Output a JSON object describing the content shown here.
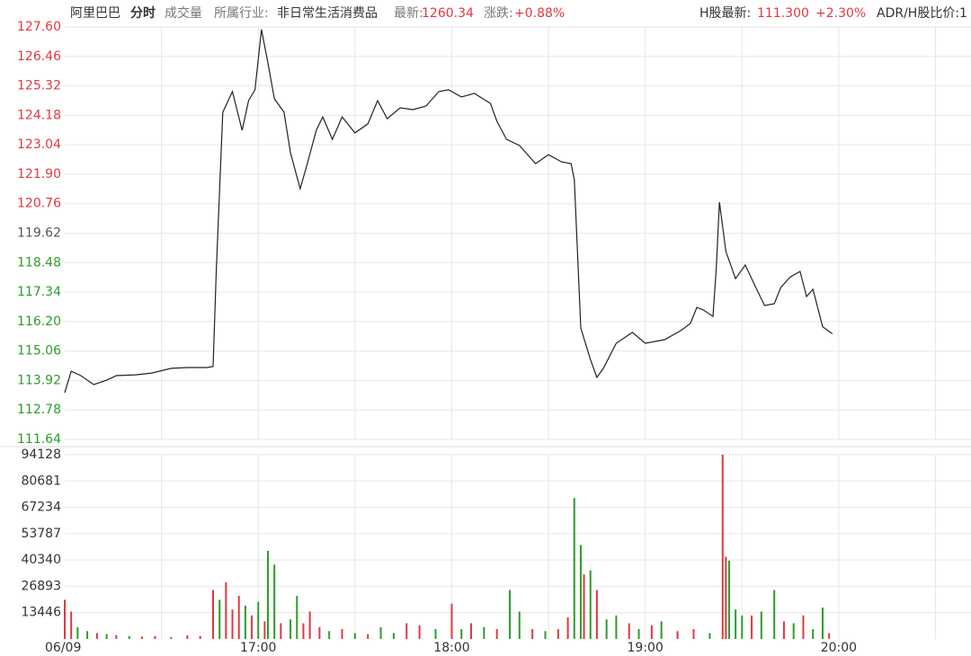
{
  "header": {
    "name": "阿里巴巴",
    "tab": "分时",
    "volume_tab": "成交量",
    "industry_label": "所属行业:",
    "industry": "非日常生活消费品",
    "latest_label": "最新:",
    "latest": "1260.34",
    "change_label": "涨跌:",
    "change": "+0.88%",
    "h_label": "H股最新:",
    "h_price": "111.300",
    "h_change": "+2.30%",
    "adr_label": "ADR/H股比价:1"
  },
  "chart_data": [
    {
      "type": "line",
      "color": "#222222",
      "grid": true,
      "x": [
        "16:00",
        "16:02",
        "16:05",
        "16:09",
        "16:13",
        "16:16",
        "16:22",
        "16:27",
        "16:33",
        "16:38",
        "16:44",
        "16:46",
        "16:47",
        "16:49",
        "16:52",
        "16:55",
        "16:57",
        "16:59",
        "17:01",
        "17:03",
        "17:05",
        "17:08",
        "17:10",
        "17:13",
        "17:15",
        "17:18",
        "17:20",
        "17:23",
        "17:26",
        "17:30",
        "17:34",
        "17:37",
        "17:40",
        "17:44",
        "17:48",
        "17:52",
        "17:56",
        "17:59",
        "18:03",
        "18:07",
        "18:12",
        "18:14",
        "18:17",
        "18:21",
        "18:26",
        "18:30",
        "18:34",
        "18:37",
        "18:38",
        "18:40",
        "18:43",
        "18:45",
        "18:47",
        "18:51",
        "18:56",
        "19:00",
        "19:06",
        "19:11",
        "19:14",
        "19:16",
        "19:18",
        "19:21",
        "19:22",
        "19:23",
        "19:25",
        "19:28",
        "19:31",
        "19:34",
        "19:37",
        "19:40",
        "19:42",
        "19:45",
        "19:48",
        "19:50",
        "19:52",
        "19:55",
        "19:58"
      ],
      "values": [
        113.45,
        114.28,
        114.11,
        113.76,
        113.93,
        114.11,
        114.14,
        114.21,
        114.39,
        114.42,
        114.42,
        114.46,
        118.21,
        124.3,
        125.1,
        123.6,
        124.75,
        125.17,
        127.5,
        126.21,
        124.82,
        124.3,
        122.73,
        121.34,
        122.21,
        123.6,
        124.12,
        123.25,
        124.12,
        123.5,
        123.85,
        124.75,
        124.05,
        124.47,
        124.4,
        124.54,
        125.1,
        125.17,
        124.89,
        125.03,
        124.64,
        123.95,
        123.25,
        123.01,
        122.31,
        122.66,
        122.38,
        122.31,
        121.69,
        115.95,
        114.73,
        114.04,
        114.39,
        115.36,
        115.78,
        115.36,
        115.5,
        115.85,
        116.13,
        116.75,
        116.65,
        116.4,
        118.21,
        120.82,
        118.91,
        117.86,
        118.39,
        117.59,
        116.82,
        116.89,
        117.52,
        117.93,
        118.14,
        117.17,
        117.45,
        116.0,
        115.73
      ],
      "xlim": [
        "16:00",
        "20:41"
      ],
      "ylim": [
        111.64,
        127.6
      ],
      "yticks": [
        {
          "value": 127.6,
          "label": "127.60"
        },
        126.46,
        125.32,
        124.18,
        123.04,
        {
          "value": 121.9,
          "label": "121.90"
        },
        120.76,
        119.62,
        118.48,
        117.34,
        {
          "value": 116.2,
          "label": "116.20"
        },
        115.06,
        113.92,
        112.78,
        111.64
      ],
      "ytick_colors": [
        "#e0393e",
        "#e0393e",
        "#e0393e",
        "#e0393e",
        "#e0393e",
        "#e0393e",
        "#e0393e",
        "#555555",
        "#2a9d2a",
        "#2a9d2a",
        "#2a9d2a",
        "#2a9d2a",
        "#2a9d2a",
        "#2a9d2a",
        "#2a9d2a"
      ]
    },
    {
      "type": "bar",
      "grid": true,
      "x": [
        "16:00",
        "16:02",
        "16:04",
        "16:07",
        "16:10",
        "16:13",
        "16:16",
        "16:20",
        "16:24",
        "16:28",
        "16:33",
        "16:38",
        "16:42",
        "16:46",
        "16:48",
        "16:50",
        "16:52",
        "16:54",
        "16:56",
        "16:58",
        "17:00",
        "17:02",
        "17:03",
        "17:05",
        "17:07",
        "17:10",
        "17:12",
        "17:14",
        "17:16",
        "17:19",
        "17:22",
        "17:26",
        "17:30",
        "17:34",
        "17:38",
        "17:42",
        "17:46",
        "17:50",
        "17:55",
        "18:00",
        "18:03",
        "18:06",
        "18:10",
        "18:14",
        "18:18",
        "18:21",
        "18:25",
        "18:29",
        "18:33",
        "18:36",
        "18:38",
        "18:40",
        "18:41",
        "18:43",
        "18:45",
        "18:48",
        "18:51",
        "18:55",
        "18:58",
        "19:02",
        "19:05",
        "19:10",
        "19:15",
        "19:20",
        "19:24",
        "19:25",
        "19:26",
        "19:28",
        "19:30",
        "19:33",
        "19:36",
        "19:40",
        "19:43",
        "19:46",
        "19:49",
        "19:52",
        "19:55",
        "19:57"
      ],
      "values": [
        20000,
        14000,
        6000,
        4000,
        3000,
        2500,
        2000,
        1500,
        1200,
        1500,
        1000,
        1800,
        1500,
        25000,
        20000,
        29000,
        15000,
        22000,
        17000,
        12000,
        19000,
        9000,
        45000,
        38000,
        8000,
        10000,
        22000,
        8000,
        14000,
        6000,
        4000,
        5000,
        3000,
        2500,
        6000,
        3000,
        8000,
        7000,
        5000,
        18000,
        5000,
        8000,
        6000,
        5000,
        25000,
        14000,
        5000,
        4000,
        5000,
        11000,
        72000,
        48000,
        33000,
        35000,
        25000,
        10000,
        12000,
        8000,
        5000,
        7000,
        9000,
        4000,
        5000,
        3000,
        94128,
        42000,
        40000,
        15000,
        12000,
        12000,
        14000,
        25000,
        9000,
        8000,
        12000,
        5000,
        16000,
        3000
      ],
      "colors": [
        "#e0393e",
        "#e0393e",
        "#2a9d2a",
        "#2a9d2a",
        "#e0393e",
        "#2a9d2a",
        "#e0393e",
        "#2a9d2a",
        "#e0393e",
        "#e0393e",
        "#2a9d2a",
        "#e0393e",
        "#e0393e",
        "#e0393e",
        "#2a9d2a",
        "#e0393e",
        "#e0393e",
        "#e0393e",
        "#2a9d2a",
        "#e0393e",
        "#2a9d2a",
        "#e0393e",
        "#2a9d2a",
        "#2a9d2a",
        "#e0393e",
        "#2a9d2a",
        "#2a9d2a",
        "#e0393e",
        "#e0393e",
        "#e0393e",
        "#2a9d2a",
        "#e0393e",
        "#2a9d2a",
        "#e0393e",
        "#2a9d2a",
        "#2a9d2a",
        "#e0393e",
        "#e0393e",
        "#2a9d2a",
        "#e0393e",
        "#2a9d2a",
        "#e0393e",
        "#2a9d2a",
        "#e0393e",
        "#2a9d2a",
        "#2a9d2a",
        "#e0393e",
        "#2a9d2a",
        "#e0393e",
        "#e0393e",
        "#2a9d2a",
        "#2a9d2a",
        "#e0393e",
        "#2a9d2a",
        "#e0393e",
        "#2a9d2a",
        "#2a9d2a",
        "#e0393e",
        "#2a9d2a",
        "#e0393e",
        "#2a9d2a",
        "#e0393e",
        "#e0393e",
        "#2a9d2a",
        "#e0393e",
        "#e0393e",
        "#2a9d2a",
        "#2a9d2a",
        "#2a9d2a",
        "#e0393e",
        "#2a9d2a",
        "#2a9d2a",
        "#e0393e",
        "#2a9d2a",
        "#e0393e",
        "#2a9d2a",
        "#2a9d2a",
        "#e0393e"
      ],
      "xlim": [
        "16:00",
        "20:41"
      ],
      "ylim": [
        0,
        94128
      ],
      "yticks": [
        13446,
        26893,
        40340,
        53787,
        67234,
        80681,
        94128
      ],
      "xticks": [
        {
          "value": "16:00",
          "label": "06/09"
        },
        "17:00",
        "18:00",
        "19:00",
        "20:00"
      ]
    }
  ]
}
